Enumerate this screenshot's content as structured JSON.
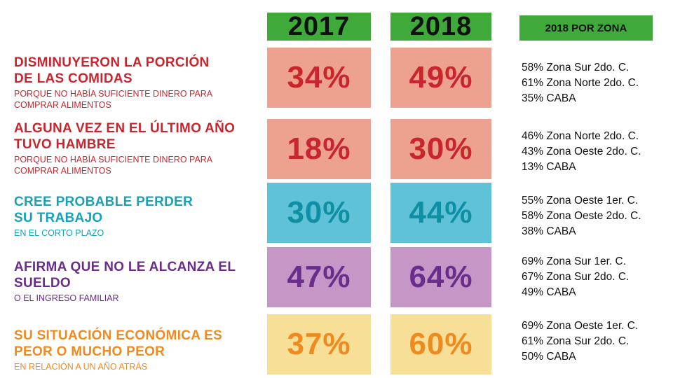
{
  "headers": {
    "y2017": "2017",
    "y2018": "2018",
    "zone": "2018 POR ZONA"
  },
  "chart_data": {
    "type": "table",
    "columns": [
      "2017",
      "2018",
      "2018 POR ZONA"
    ],
    "rows": [
      {
        "title_l1": "DISMINUYERON LA PORCIÓN",
        "title_l2": "DE LAS COMIDAS",
        "sub_l1": "PORQUE NO HABÍA SUFICIENTE DINERO PARA",
        "sub_l2": "COMPRAR ALIMENTOS",
        "v2017": "34%",
        "v2018": "49%",
        "zones": [
          "58% Zona Sur 2do. C.",
          "61% Zona Norte 2do. C.",
          "35% CABA"
        ],
        "text_color": "#c9252c",
        "fill_color": "#eda28f",
        "value_color": "#c9252c"
      },
      {
        "title_l1": "ALGUNA VEZ EN EL ÚLTIMO AÑO",
        "title_l2": "TUVO HAMBRE",
        "sub_l1": "PORQUE NO HABÍA SUFICIENTE DINERO PARA",
        "sub_l2": "COMPRAR ALIMENTOS",
        "v2017": "18%",
        "v2018": "30%",
        "zones": [
          "46% Zona Norte 2do. C.",
          "43% Zona Oeste 2do. C.",
          "13% CABA"
        ],
        "text_color": "#c9252c",
        "fill_color": "#eda28f",
        "value_color": "#c9252c"
      },
      {
        "title_l1": "CREE PROBABLE PERDER",
        "title_l2": "SU TRABAJO",
        "sub_l1": "EN EL CORTO PLAZO",
        "sub_l2": "",
        "v2017": "30%",
        "v2018": "44%",
        "zones": [
          "55% Zona Oeste 1er. C.",
          "58% Zona Oeste 2do. C.",
          "38% CABA"
        ],
        "text_color": "#16a2b8",
        "fill_color": "#5fc2d6",
        "value_color": "#0f8fa3"
      },
      {
        "title_l1": "AFIRMA QUE NO LE ALCANZA EL",
        "title_l2": "SUELDO",
        "sub_l1": "O EL INGRESO FAMILIAR",
        "sub_l2": "",
        "v2017": "47%",
        "v2018": "64%",
        "zones": [
          "69% Zona Sur 1er. C.",
          "67% Zona Sur 2do. C.",
          "49% CABA"
        ],
        "text_color": "#6b2d8c",
        "fill_color": "#c596c6",
        "value_color": "#6b2d8c"
      },
      {
        "title_l1": "SU SITUACIÓN ECONÓMICA ES",
        "title_l2": "PEOR O MUCHO PEOR",
        "sub_l1": "EN RELACIÓN A UN AÑO ATRÁS",
        "sub_l2": "",
        "v2017": "37%",
        "v2018": "60%",
        "zones": [
          "69% Zona Oeste 1er. C.",
          "61% Zona Sur 2do. C.",
          "50% CABA"
        ],
        "text_color": "#ef8a1e",
        "fill_color": "#f8df98",
        "value_color": "#ef8a1e"
      }
    ]
  }
}
